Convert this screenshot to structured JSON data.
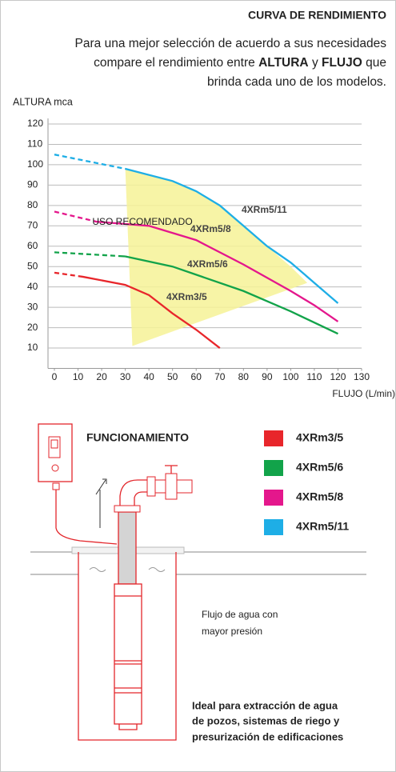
{
  "chart_data": {
    "type": "line",
    "title": "CURVA DE RENDIMIENTO",
    "intro": {
      "line1": "Para una mejor selección de acuerdo a sus necesidades",
      "line2": [
        "compare el rendimiento entre",
        "ALTURA",
        "y",
        "FLUJO",
        "que"
      ],
      "line3": "brinda cada uno de los modelos."
    },
    "y_label": "ALTURA mca",
    "x_label": "FLUJO (L/min)",
    "xlim": [
      0,
      130
    ],
    "xticks": [
      0,
      10,
      20,
      30,
      40,
      50,
      60,
      70,
      80,
      90,
      100,
      110,
      120,
      130
    ],
    "ylim": [
      0,
      120
    ],
    "yticks": [
      10,
      20,
      30,
      40,
      50,
      60,
      70,
      80,
      90,
      100,
      110,
      120
    ],
    "grid": true,
    "dashed_first_segment": true,
    "recommended_region": {
      "label": "USO RECOMENDADO",
      "color": "#f6f296",
      "x": [
        30,
        45,
        60,
        70,
        80,
        90,
        100,
        107,
        33
      ],
      "y": [
        98,
        94,
        87,
        80,
        70,
        60,
        50,
        42,
        11
      ]
    },
    "series": [
      {
        "name": "4XRm3/5",
        "color": "#e8262b",
        "x": [
          0,
          12,
          30,
          40,
          50,
          60,
          70
        ],
        "values": [
          47,
          45,
          41,
          36,
          27,
          19,
          10
        ]
      },
      {
        "name": "4XRm5/6",
        "color": "#12a34a",
        "x": [
          0,
          30,
          50,
          60,
          80,
          100,
          120
        ],
        "values": [
          57,
          55,
          50,
          46,
          38,
          28,
          17
        ]
      },
      {
        "name": "4XRm5/8",
        "color": "#e4178c",
        "x": [
          0,
          18,
          40,
          60,
          70,
          80,
          100,
          110,
          120
        ],
        "values": [
          77,
          72,
          70,
          63,
          57,
          51,
          38,
          31,
          23
        ]
      },
      {
        "name": "4XRm5/11",
        "color": "#1eaee6",
        "x": [
          0,
          30,
          50,
          60,
          70,
          80,
          90,
          100,
          110,
          120
        ],
        "values": [
          105,
          98,
          92,
          87,
          80,
          70,
          60,
          52,
          42,
          32
        ]
      }
    ]
  },
  "diagram": {
    "title": "FUNCIONAMIENTO",
    "flow_note": [
      "Flujo de agua con",
      "mayor presión"
    ],
    "usage_note": [
      "Ideal para extracción de agua",
      "de pozos, sistemas de riego y",
      "presurización de edificaciones"
    ]
  }
}
